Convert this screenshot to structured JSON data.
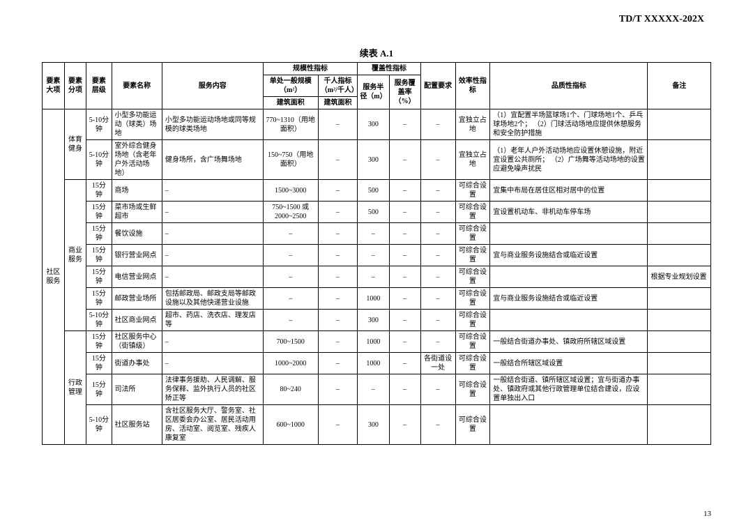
{
  "doc_header": "TD/T   XXXXX-202X",
  "table_title": "续表 A.1",
  "page_number": "13",
  "headers": {
    "h1": "要素大项",
    "h2": "要素分项",
    "h3": "要素层级",
    "h4": "要素名称",
    "h5": "服务内容",
    "h6": "规模性指标",
    "h7": "覆盖性指标",
    "h8a": "配置要求",
    "h8": "效率性指标",
    "h9": "品质性指标",
    "h10": "备注",
    "h6a": "单处一般规模（m²）",
    "h6b": "千人指标（m²/千人）",
    "h6c": "建筑面积",
    "h6d": "建筑面积",
    "h7a": "服务半径（m）",
    "h7b": "服务覆盖率（%）"
  },
  "cat": {
    "main": "社区服务",
    "sport": "体育健身",
    "commerce": "商业服务",
    "admin": "行政管理"
  },
  "rows": {
    "r1": {
      "level": "5-10分钟",
      "name": "小型多功能运动（球类）场地",
      "content": "小型多功能运动场地或同等规模的球类场地",
      "scale": "770~1310（用地面积）",
      "qk": "–",
      "radius": "300",
      "cover": "–",
      "req": "–",
      "eff": "宜独立占地",
      "quality": "（1）宜配置半场篮球场1个、门球场地1个、乒乓球场地2个；\n（2）门球活动场地应提供休憩服务和安全防护措施",
      "note": ""
    },
    "r2": {
      "level": "5-10分钟",
      "name": "室外综合健身场地（含老年户外活动场地）",
      "content": "健身场所，含广场舞场地",
      "scale": "150~750（用地面积）",
      "qk": "–",
      "radius": "300",
      "cover": "–",
      "req": "–",
      "eff": "宜独立占地",
      "quality": "（1）老年人户外活动场地应设置休憩设施，附近宜设置公共厕所；\n（2）广场舞等活动场地的设置应避免噪声扰民",
      "note": ""
    },
    "r3": {
      "level": "15分钟",
      "name": "商场",
      "content": "–",
      "scale": "1500~3000",
      "qk": "–",
      "radius": "500",
      "cover": "–",
      "req": "–",
      "eff": "可综合设置",
      "quality": "宜集中布局在居住区相对居中的位置",
      "note": ""
    },
    "r4": {
      "level": "15分钟",
      "name": "菜市场或生鲜超市",
      "content": "–",
      "scale": "750~1500 或 2000~2500",
      "qk": "–",
      "radius": "500",
      "cover": "–",
      "req": "–",
      "eff": "可综合设置",
      "quality": "宜设置机动车、非机动车停车场",
      "note": ""
    },
    "r5": {
      "level": "15分钟",
      "name": "餐饮设施",
      "content": "–",
      "scale": "–",
      "qk": "–",
      "radius": "–",
      "cover": "–",
      "req": "–",
      "eff": "可综合设置",
      "quality": "",
      "note": ""
    },
    "r6": {
      "level": "15分钟",
      "name": "银行营业网点",
      "content": "–",
      "scale": "–",
      "qk": "–",
      "radius": "–",
      "cover": "–",
      "req": "–",
      "eff": "可综合设置",
      "quality": "宜与商业服务设施结合或临近设置",
      "note": ""
    },
    "r7": {
      "level": "15分钟",
      "name": "电信营业网点",
      "content": "–",
      "scale": "–",
      "qk": "–",
      "radius": "–",
      "cover": "–",
      "req": "–",
      "eff": "可综合设置",
      "quality": "",
      "note": "根据专业规划设置"
    },
    "r8": {
      "level": "15分钟",
      "name": "邮政营业场所",
      "content": "包括邮政局、邮政支局等邮政设施以及其他快递营业设施",
      "scale": "–",
      "qk": "–",
      "radius": "1000",
      "cover": "–",
      "req": "–",
      "eff": "可综合设置",
      "quality": "宜与商业服务设施结合或临近设置",
      "note": ""
    },
    "r9": {
      "level": "5-10分钟",
      "name": "社区商业网点",
      "content": "超市、药店、洗衣店、理发店等",
      "scale": "–",
      "qk": "–",
      "radius": "300",
      "cover": "–",
      "req": "–",
      "eff": "可综合设置",
      "quality": "",
      "note": ""
    },
    "r10": {
      "level": "15分钟",
      "name": "社区服务中心（街镇级）",
      "content": "–",
      "scale": "700~1500",
      "qk": "–",
      "radius": "1000",
      "cover": "–",
      "req": "–",
      "eff": "可综合设置",
      "quality": "一般结合街道办事处、镇政府所辖区域设置",
      "note": ""
    },
    "r11": {
      "level": "15分钟",
      "name": "街道办事处",
      "content": "–",
      "scale": "1000~2000",
      "qk": "–",
      "radius": "1000",
      "cover": "–",
      "req": "各街道设一处",
      "eff": "可综合设置",
      "quality": "一般结合所辖区域设置",
      "note": ""
    },
    "r12": {
      "level": "15分钟",
      "name": "司法所",
      "content": "法律事务援助、人民调解、服务保释、监外执行人员的社区矫正等",
      "scale": "80~240",
      "qk": "–",
      "radius": "–",
      "cover": "–",
      "req": "–",
      "eff": "可综合设置",
      "quality": "一般结合街道、镇所辖区域设置；宜与街道办事处、镇政府或其他行政管理单位结合建设，应设置单独出入口",
      "note": ""
    },
    "r13": {
      "level": "5-10分钟",
      "name": "社区服务站",
      "content": "含社区服务大厅、警务室、社区居委会办公室、居民活动用房、活动室、阅览室、残疾人康复室",
      "scale": "600~1000",
      "qk": "–",
      "radius": "300",
      "cover": "–",
      "req": "–",
      "eff": "可综合设置",
      "quality": "",
      "note": ""
    }
  }
}
